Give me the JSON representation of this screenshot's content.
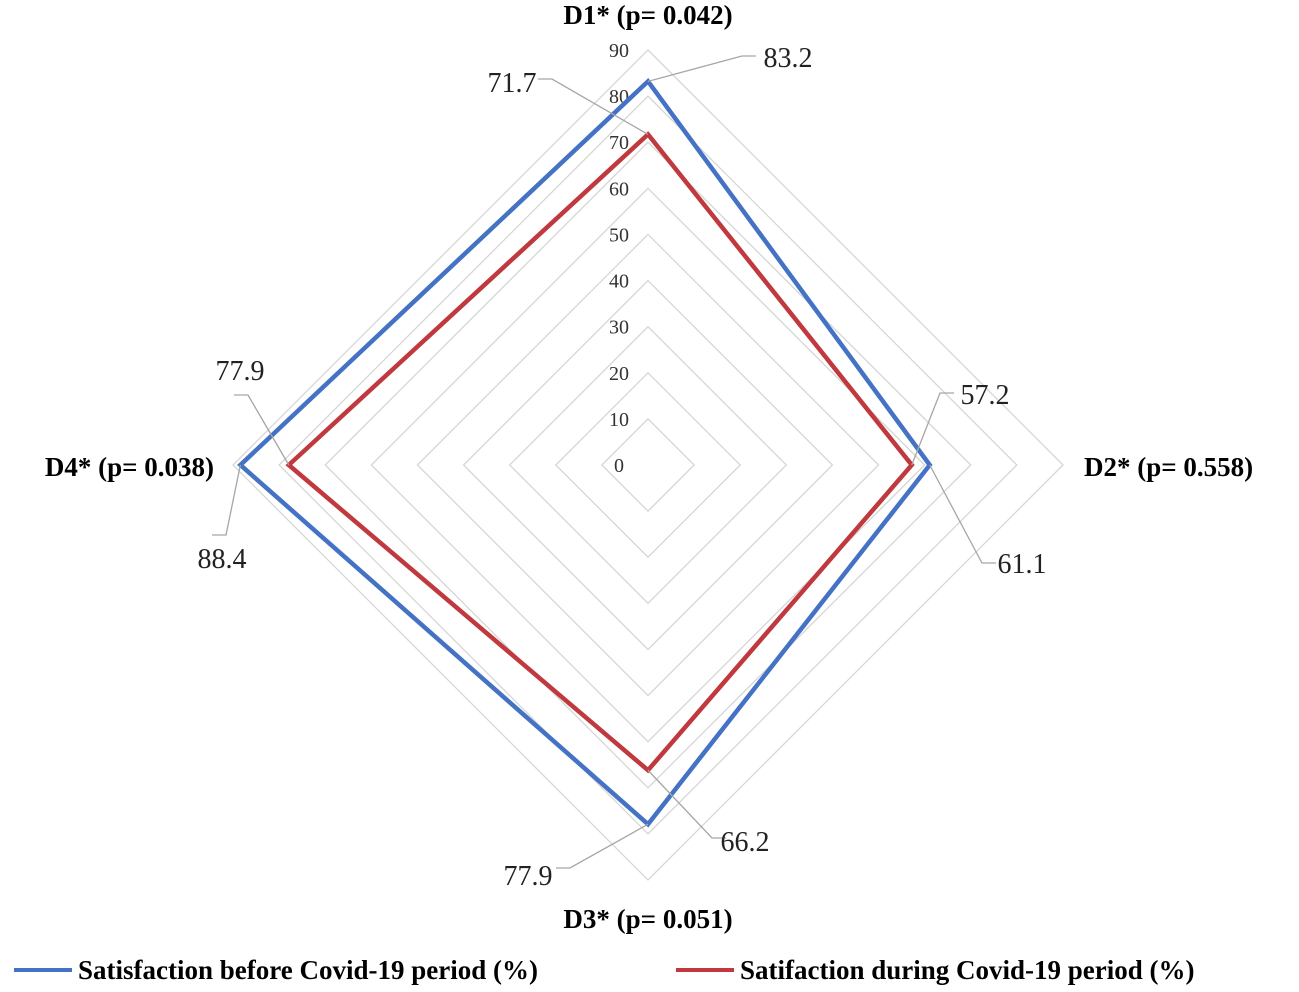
{
  "chart_data": {
    "type": "radar",
    "categories": [
      "D1*  (p= 0.042)",
      "D2*  (p= 0.558)",
      "D3*  (p= 0.051)",
      "D4*  (p= 0.038)"
    ],
    "ticks": [
      "0",
      "10",
      "20",
      "30",
      "40",
      "50",
      "60",
      "70",
      "80",
      "90"
    ],
    "rlim": [
      0,
      90
    ],
    "series": [
      {
        "name": "Satisfaction before Covid-19 period (%)",
        "color": "#4472C4",
        "values": [
          83.2,
          61.1,
          77.9,
          88.4
        ],
        "labels": [
          "83.2",
          "61.1",
          "77.9",
          "88.4"
        ]
      },
      {
        "name": "Satifaction during Covid-19 period (%)",
        "color": "#C0393E",
        "values": [
          71.7,
          57.2,
          66.2,
          77.9
        ],
        "labels": [
          "71.7",
          "57.2",
          "66.2",
          "77.9"
        ]
      }
    ],
    "grid": true,
    "legend_position": "bottom"
  }
}
